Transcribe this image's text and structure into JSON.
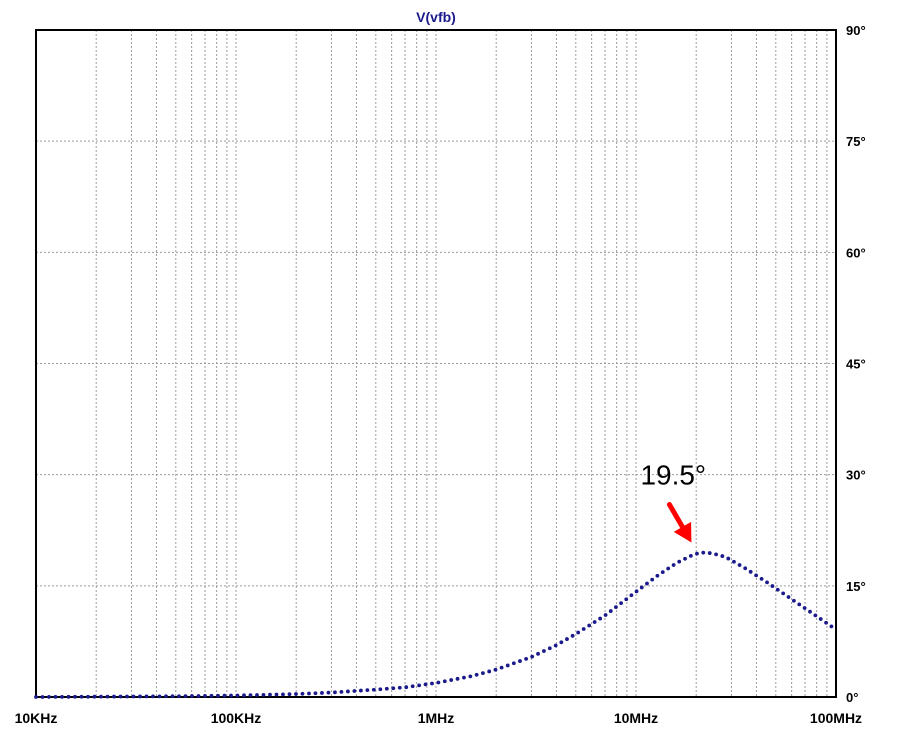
{
  "chart_data": {
    "type": "line",
    "title": "V(vfb)",
    "xscale": "log",
    "xlim": [
      10000,
      100000000
    ],
    "ylim": [
      0,
      90
    ],
    "y_axis_side": "right",
    "grid": true,
    "x_tick_labels": [
      {
        "value": 10000,
        "label": "10KHz"
      },
      {
        "value": 100000,
        "label": "100KHz"
      },
      {
        "value": 1000000,
        "label": "1MHz"
      },
      {
        "value": 10000000,
        "label": "10MHz"
      },
      {
        "value": 100000000,
        "label": "100MHz"
      }
    ],
    "y_tick_labels": [
      {
        "value": 0,
        "label": "0°"
      },
      {
        "value": 15,
        "label": "15°"
      },
      {
        "value": 30,
        "label": "30°"
      },
      {
        "value": 45,
        "label": "45°"
      },
      {
        "value": 60,
        "label": "60°"
      },
      {
        "value": 75,
        "label": "75°"
      },
      {
        "value": 90,
        "label": "90°"
      }
    ],
    "series": [
      {
        "color": "#1a1a8c",
        "style": "dotted",
        "x": [
          10000,
          50000,
          100000,
          200000,
          300000,
          500000,
          700000,
          1000000,
          1500000,
          2000000,
          3000000,
          4000000,
          5000000,
          7000000,
          10000000,
          13000000,
          16000000,
          19000000,
          21000000,
          24000000,
          28000000,
          35000000,
          45000000,
          60000000,
          80000000,
          100000000
        ],
        "values": [
          0,
          0.1,
          0.2,
          0.4,
          0.6,
          1.0,
          1.3,
          1.9,
          2.8,
          3.7,
          5.4,
          7.0,
          8.5,
          11.0,
          14.2,
          16.5,
          18.1,
          19.1,
          19.5,
          19.4,
          18.9,
          17.4,
          15.5,
          13.2,
          10.9,
          9.1
        ]
      }
    ],
    "annotations": [
      {
        "text": "19.5°",
        "x": 21000000,
        "y": 19.5,
        "color": "#000000",
        "arrow_color": "#ff0000"
      }
    ]
  }
}
